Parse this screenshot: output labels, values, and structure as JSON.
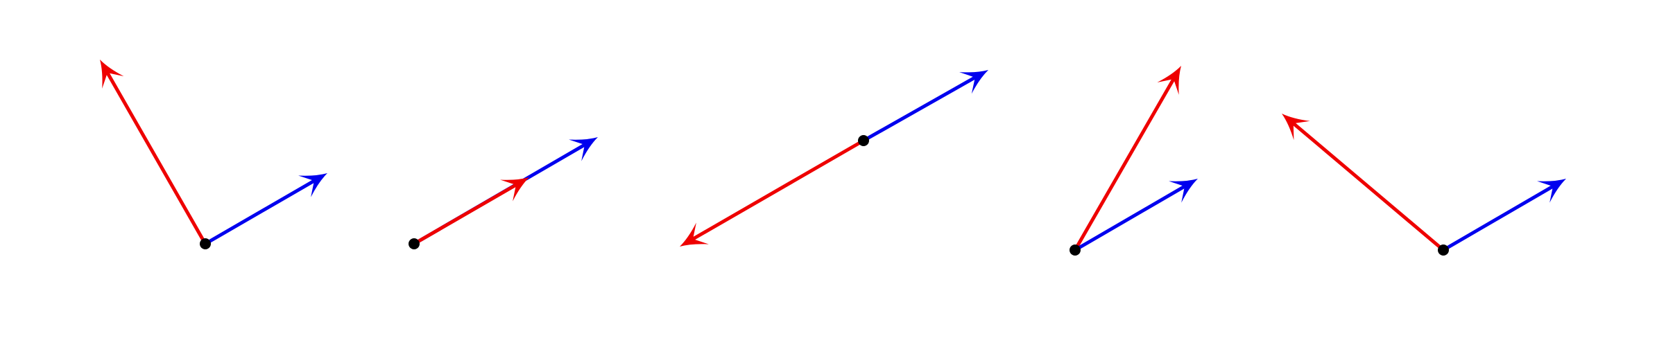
{
  "colors": {
    "background": "#ffffff",
    "vector_a": "#0000ee",
    "vector_b": "#ee0000",
    "origin_point": "#000000"
  },
  "panels": [
    {
      "id": "panel-1",
      "description_label": ""
    },
    {
      "id": "panel-2",
      "description_label": ""
    },
    {
      "id": "panel-3",
      "description_label": ""
    },
    {
      "id": "panel-4",
      "description_label": ""
    },
    {
      "id": "panel-5",
      "description_label": ""
    }
  ]
}
